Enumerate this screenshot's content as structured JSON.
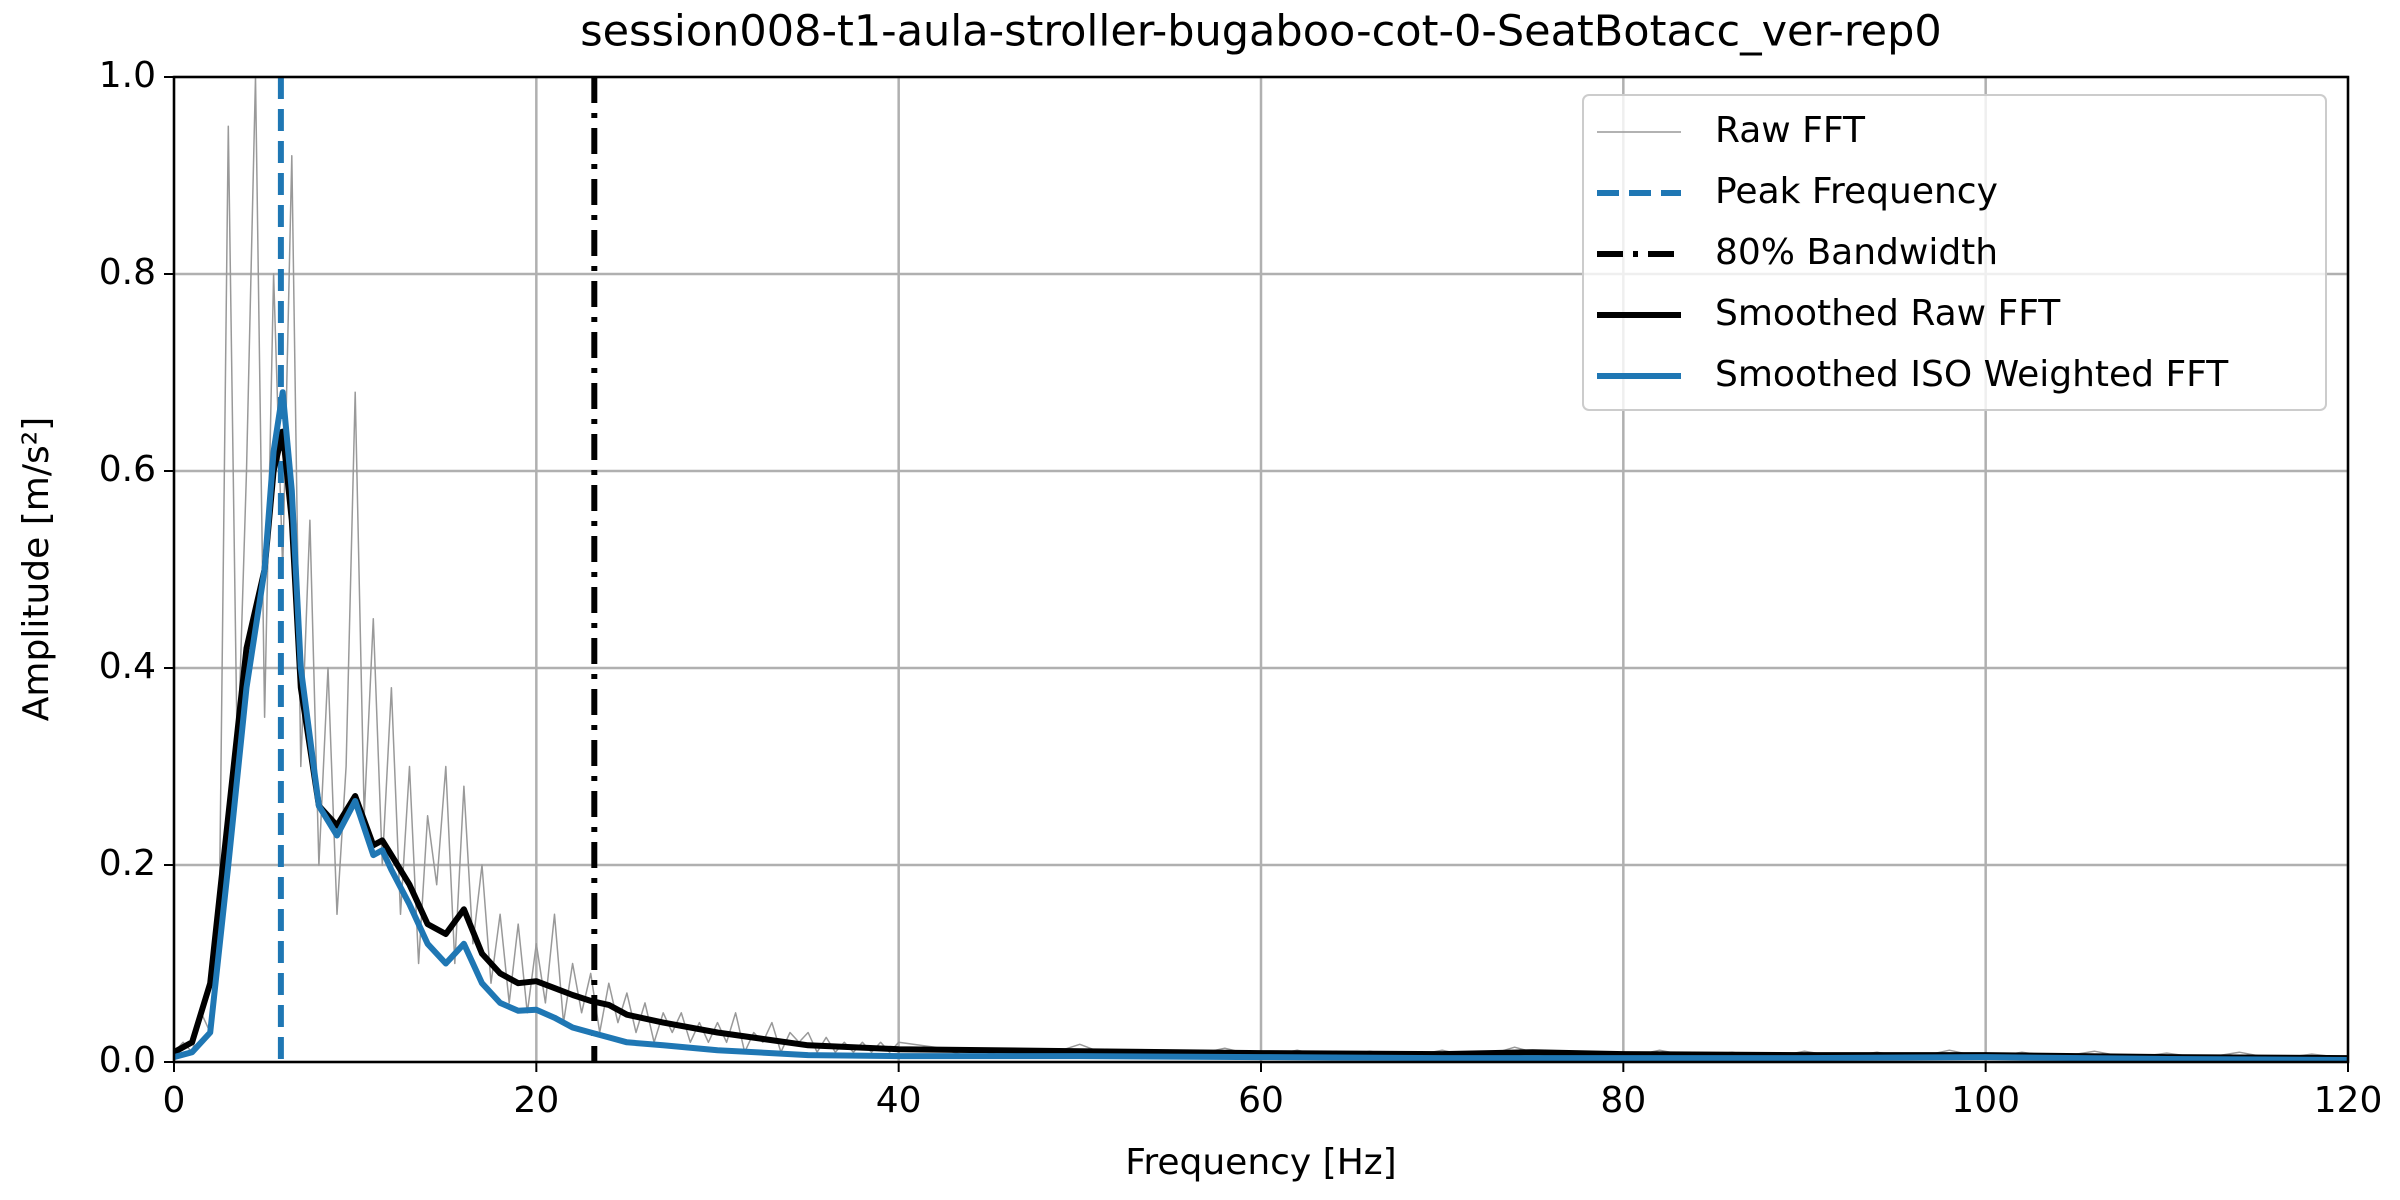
{
  "chart_data": {
    "type": "line",
    "title": "session008-t1-aula-stroller-bugaboo-cot-0-SeatBotacc_ver-rep0",
    "x_label": "Frequency [Hz]",
    "y_label": "Amplitude [m/s²]",
    "xlim": [
      0,
      120
    ],
    "ylim": [
      0,
      1
    ],
    "xticks": [
      0,
      20,
      40,
      60,
      80,
      100,
      120
    ],
    "yticks": [
      {
        "value": 0,
        "label": "0.0"
      },
      0.2,
      0.4,
      0.6,
      0.8,
      {
        "value": 1,
        "label": "1.0"
      }
    ],
    "grid": true,
    "legend": "upper right",
    "series": [
      {
        "name": "Raw FFT",
        "color": "#999999",
        "linewidth": 1.5,
        "x": [
          0,
          0.5,
          1,
          1.5,
          2,
          2.5,
          3,
          3.5,
          4,
          4.5,
          5,
          5.5,
          6,
          6.5,
          7,
          7.5,
          8,
          8.5,
          9,
          9.5,
          10,
          10.5,
          11,
          11.5,
          12,
          12.5,
          13,
          13.5,
          14,
          14.5,
          15,
          15.5,
          16,
          16.5,
          17,
          17.5,
          18,
          18.5,
          19,
          19.5,
          20,
          20.5,
          21,
          21.5,
          22,
          22.5,
          23,
          23.5,
          24,
          24.5,
          25,
          25.5,
          26,
          26.5,
          27,
          27.5,
          28,
          28.5,
          29,
          29.5,
          30,
          30.5,
          31,
          31.5,
          32,
          32.5,
          33,
          33.5,
          34,
          34.5,
          35,
          35.5,
          36,
          36.5,
          37,
          37.5,
          38,
          38.5,
          39,
          39.5,
          40,
          42,
          44,
          46,
          48,
          50,
          52,
          54,
          56,
          58,
          60,
          62,
          64,
          66,
          68,
          70,
          72,
          74,
          76,
          78,
          80,
          82,
          84,
          86,
          88,
          90,
          92,
          94,
          96,
          98,
          100,
          102,
          104,
          106,
          108,
          110,
          112,
          114,
          116,
          118,
          120
        ],
        "values": [
          0.01,
          0.02,
          0.01,
          0.05,
          0.03,
          0.15,
          0.95,
          0.3,
          0.6,
          1.0,
          0.35,
          0.8,
          0.5,
          0.92,
          0.3,
          0.55,
          0.2,
          0.4,
          0.15,
          0.3,
          0.68,
          0.25,
          0.45,
          0.2,
          0.38,
          0.15,
          0.3,
          0.1,
          0.25,
          0.18,
          0.3,
          0.1,
          0.28,
          0.12,
          0.2,
          0.08,
          0.15,
          0.06,
          0.14,
          0.05,
          0.12,
          0.06,
          0.15,
          0.04,
          0.1,
          0.05,
          0.09,
          0.03,
          0.08,
          0.04,
          0.07,
          0.03,
          0.06,
          0.02,
          0.05,
          0.03,
          0.05,
          0.02,
          0.04,
          0.02,
          0.04,
          0.02,
          0.05,
          0.01,
          0.03,
          0.02,
          0.04,
          0.01,
          0.03,
          0.02,
          0.03,
          0.01,
          0.025,
          0.01,
          0.02,
          0.01,
          0.02,
          0.01,
          0.02,
          0.01,
          0.02,
          0.015,
          0.005,
          0.012,
          0.006,
          0.018,
          0.004,
          0.012,
          0.006,
          0.014,
          0.005,
          0.012,
          0.004,
          0.011,
          0.005,
          0.012,
          0.004,
          0.015,
          0.005,
          0.011,
          0.004,
          0.012,
          0.005,
          0.01,
          0.004,
          0.011,
          0.005,
          0.01,
          0.004,
          0.012,
          0.004,
          0.01,
          0.005,
          0.011,
          0.004,
          0.009,
          0.004,
          0.01,
          0.003,
          0.008,
          0.004
        ]
      },
      {
        "name": "Smoothed Raw FFT",
        "color": "#000000",
        "linewidth": 6,
        "x": [
          0,
          1,
          2,
          3,
          4,
          5,
          5.5,
          6,
          6.5,
          7,
          8,
          9,
          10,
          11,
          11.5,
          12,
          13,
          14,
          15,
          16,
          17,
          18,
          19,
          20,
          21,
          22,
          23,
          24,
          25,
          27,
          30,
          35,
          40,
          50,
          60,
          70,
          75,
          80,
          90,
          100,
          110,
          120
        ],
        "values": [
          0.01,
          0.02,
          0.08,
          0.25,
          0.42,
          0.5,
          0.6,
          0.64,
          0.55,
          0.38,
          0.26,
          0.24,
          0.27,
          0.22,
          0.225,
          0.21,
          0.18,
          0.14,
          0.13,
          0.155,
          0.11,
          0.09,
          0.08,
          0.082,
          0.075,
          0.068,
          0.062,
          0.058,
          0.048,
          0.04,
          0.03,
          0.017,
          0.013,
          0.011,
          0.009,
          0.008,
          0.01,
          0.008,
          0.007,
          0.007,
          0.005,
          0.004
        ]
      },
      {
        "name": "Smoothed ISO Weighted FFT",
        "color": "#1f77b4",
        "linewidth": 6,
        "x": [
          0,
          1,
          2,
          3,
          4,
          5,
          5.5,
          6,
          6.5,
          7,
          8,
          9,
          10,
          11,
          11.5,
          12,
          13,
          14,
          15,
          16,
          17,
          18,
          19,
          20,
          21,
          22,
          23,
          24,
          25,
          27,
          30,
          35,
          40,
          50,
          60,
          70,
          75,
          80,
          90,
          100,
          110,
          120
        ],
        "values": [
          0.005,
          0.01,
          0.03,
          0.2,
          0.38,
          0.5,
          0.62,
          0.68,
          0.58,
          0.4,
          0.26,
          0.23,
          0.265,
          0.21,
          0.215,
          0.195,
          0.16,
          0.12,
          0.1,
          0.12,
          0.08,
          0.06,
          0.052,
          0.053,
          0.045,
          0.035,
          0.03,
          0.025,
          0.02,
          0.017,
          0.012,
          0.007,
          0.006,
          0.006,
          0.005,
          0.004,
          0.004,
          0.004,
          0.004,
          0.005,
          0.003,
          0.002
        ]
      }
    ],
    "vlines": [
      {
        "name": "Peak Frequency",
        "color": "#1f77b4",
        "x": 5.9,
        "style": "dashed"
      },
      {
        "name": "80% Bandwidth",
        "color": "#000000",
        "x": 23.2,
        "style": "dashdot"
      }
    ]
  }
}
